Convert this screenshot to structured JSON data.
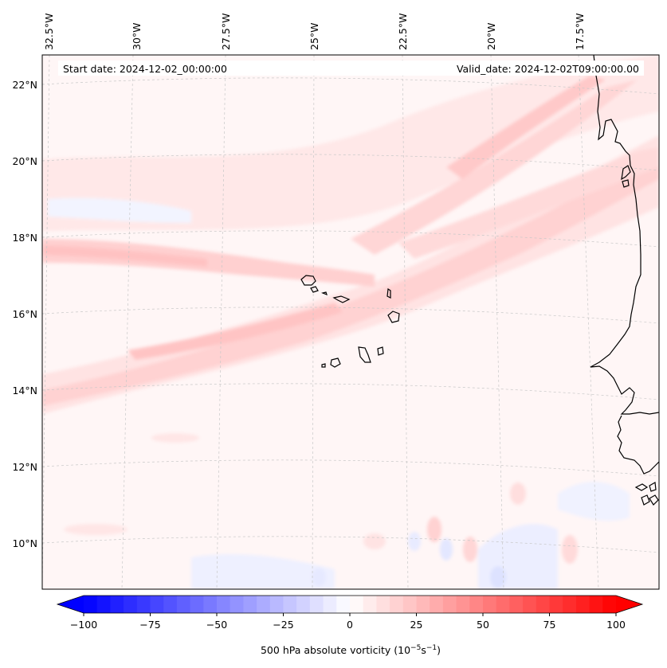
{
  "header": {
    "start_date": "Start date: 2024-12-02_00:00:00",
    "valid_date": "Valid_date: 2024-12-02T09:00:00.00"
  },
  "axes": {
    "lon_labels": [
      "32.5°W",
      "30°W",
      "27.5°W",
      "25°W",
      "22.5°W",
      "20°W",
      "17.5°W"
    ],
    "lat_labels": [
      "22°N",
      "20°N",
      "18°N",
      "16°N",
      "14°N",
      "12°N",
      "10°N"
    ]
  },
  "colorbar": {
    "ticks": [
      "−100",
      "−75",
      "−50",
      "−25",
      "0",
      "25",
      "50",
      "75",
      "100"
    ],
    "range": [
      -100,
      100
    ],
    "step": 5,
    "label_main": "500 hPa absolute vorticity (10",
    "label_exp1": "−5",
    "label_mid": "s",
    "label_exp2": "−1",
    "label_end": ")"
  },
  "colors": {
    "negative_extreme": "#0000ff",
    "zero": "#ffffff",
    "positive_extreme": "#ff0000",
    "coastline": "#000000",
    "gridline": "#c8c8c8"
  }
}
